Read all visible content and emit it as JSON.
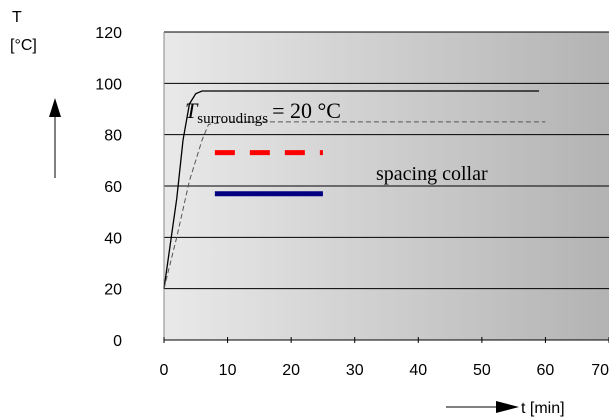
{
  "chart_data": {
    "type": "line",
    "title": "",
    "xlabel": "t [min]",
    "ylabel_symbol": "T",
    "ylabel_unit": "[°C]",
    "xlim": [
      0,
      70
    ],
    "ylim": [
      0,
      120
    ],
    "x_ticks": [
      0,
      10,
      20,
      30,
      40,
      50,
      60,
      70
    ],
    "y_ticks": [
      0,
      20,
      40,
      60,
      80,
      100,
      120
    ],
    "grid": "horizontal",
    "series": [
      {
        "style": "solid",
        "color": "#000000",
        "x": [
          0,
          2,
          3,
          4,
          5,
          6,
          8,
          20,
          40,
          59
        ],
        "y": [
          20,
          55,
          78,
          92,
          96,
          97,
          97,
          97,
          97,
          97
        ]
      },
      {
        "style": "dashed",
        "color": "#555555",
        "x": [
          0,
          2,
          4,
          6,
          7,
          10,
          20,
          40,
          60
        ],
        "y": [
          20,
          40,
          62,
          78,
          84,
          85,
          85,
          85,
          85
        ]
      }
    ],
    "annotations": {
      "surroundings_main": "T",
      "surroundings_sub": "surroudings",
      "surroundings_rest": "= 20 °C",
      "spacing_collar": "spacing collar"
    },
    "legend_swatches": [
      {
        "style": "dashed",
        "color": "#ff0000",
        "x": [
          8,
          25
        ],
        "y": 73
      },
      {
        "style": "solid",
        "color": "#000080",
        "x": [
          8,
          25
        ],
        "y": 57
      }
    ],
    "colors": {
      "plot_gradient_start": "#e9e9e9",
      "plot_gradient_end": "#b3b3b3",
      "grid": "#000000"
    }
  }
}
